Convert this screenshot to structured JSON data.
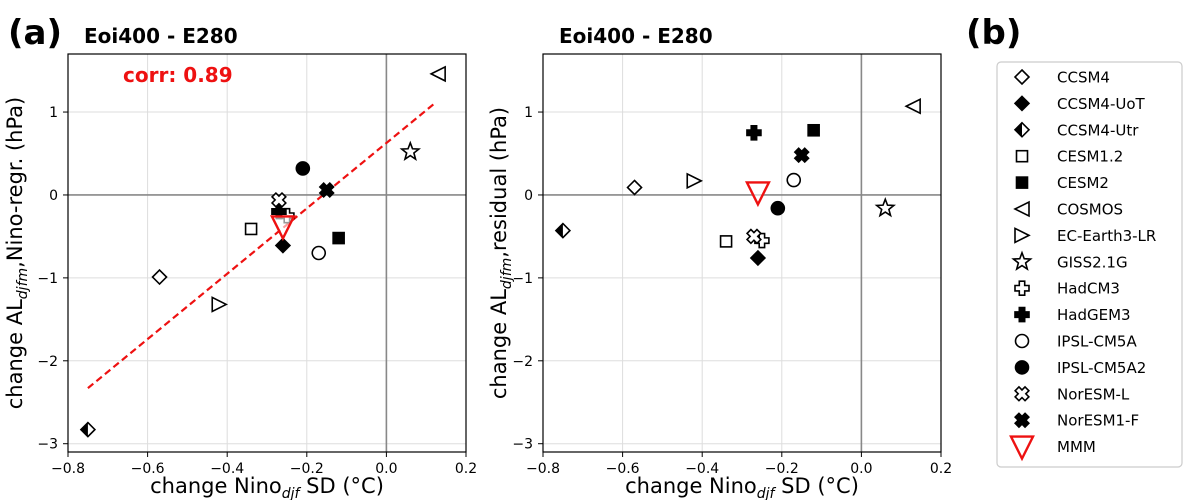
{
  "figure": {
    "panel_label_a": "(a)",
    "panel_label_b": "(b)"
  },
  "chart_data": [
    {
      "type": "scatter",
      "title": "Eoi400 - E280",
      "xlabel": "change Nino",
      "xlabel_sub": "djf",
      "xlabel_tail": " SD (°C)",
      "ylabel": "change AL",
      "ylabel_sub": "djfm",
      "ylabel_tail": ",Nino-regr. (hPa)",
      "xlim": [
        -0.8,
        0.2
      ],
      "ylim": [
        -3.1,
        1.7
      ],
      "xticks": [
        -0.8,
        -0.6,
        -0.4,
        -0.2,
        0.0,
        0.2
      ],
      "xtick_labels": [
        "−0.8",
        "−0.6",
        "−0.4",
        "−0.2",
        "0.0",
        "0.2"
      ],
      "yticks": [
        -3,
        -2,
        -1,
        0,
        1
      ],
      "ytick_labels": [
        "−3",
        "−2",
        "−1",
        "0",
        "1"
      ],
      "grid": true,
      "annotation": "corr: 0.89",
      "fit_line": {
        "x": [
          -0.75,
          0.12
        ],
        "y": [
          -2.33,
          1.1
        ],
        "color": "#ee1111"
      },
      "points": [
        {
          "model": "CCSM4",
          "x": -0.57,
          "y": -0.99
        },
        {
          "model": "CCSM4-UoT",
          "x": -0.26,
          "y": -0.61
        },
        {
          "model": "CCSM4-Utr",
          "x": -0.75,
          "y": -2.83
        },
        {
          "model": "CESM1.2",
          "x": -0.34,
          "y": -0.41
        },
        {
          "model": "CESM2",
          "x": -0.12,
          "y": -0.52
        },
        {
          "model": "COSMOS",
          "x": 0.13,
          "y": 1.46
        },
        {
          "model": "EC-Earth3-LR",
          "x": -0.42,
          "y": -1.32
        },
        {
          "model": "GISS2.1G",
          "x": 0.06,
          "y": 0.52
        },
        {
          "model": "HadCM3",
          "x": -0.25,
          "y": -0.25
        },
        {
          "model": "HadGEM3",
          "x": -0.27,
          "y": -0.2
        },
        {
          "model": "IPSL-CM5A",
          "x": -0.17,
          "y": -0.7
        },
        {
          "model": "IPSL-CM5A2",
          "x": -0.21,
          "y": 0.32
        },
        {
          "model": "NorESM-L",
          "x": -0.27,
          "y": -0.06
        },
        {
          "model": "NorESM1-F",
          "x": -0.15,
          "y": 0.06
        },
        {
          "model": "MMM",
          "x": -0.26,
          "y": -0.38
        }
      ]
    },
    {
      "type": "scatter",
      "title": "Eoi400 - E280",
      "xlabel": "change Nino",
      "xlabel_sub": "djf",
      "xlabel_tail": " SD (°C)",
      "ylabel": "change AL",
      "ylabel_sub": "djfm",
      "ylabel_tail": ",residual (hPa)",
      "xlim": [
        -0.8,
        0.2
      ],
      "ylim": [
        -3.1,
        1.7
      ],
      "xticks": [
        -0.8,
        -0.6,
        -0.4,
        -0.2,
        0.0,
        0.2
      ],
      "xtick_labels": [
        "−0.8",
        "−0.6",
        "−0.4",
        "−0.2",
        "0.0",
        "0.2"
      ],
      "yticks": [
        -3,
        -2,
        -1,
        0,
        1
      ],
      "ytick_labels": [
        "−3",
        "−2",
        "−1",
        "0",
        "1"
      ],
      "grid": true,
      "points": [
        {
          "model": "CCSM4",
          "x": -0.57,
          "y": 0.09
        },
        {
          "model": "CCSM4-UoT",
          "x": -0.26,
          "y": -0.76
        },
        {
          "model": "CCSM4-Utr",
          "x": -0.75,
          "y": -0.43
        },
        {
          "model": "CESM1.2",
          "x": -0.34,
          "y": -0.56
        },
        {
          "model": "CESM2",
          "x": -0.12,
          "y": 0.78
        },
        {
          "model": "COSMOS",
          "x": 0.13,
          "y": 1.07
        },
        {
          "model": "EC-Earth3-LR",
          "x": -0.42,
          "y": 0.17
        },
        {
          "model": "GISS2.1G",
          "x": 0.06,
          "y": -0.16
        },
        {
          "model": "HadCM3",
          "x": -0.25,
          "y": -0.55
        },
        {
          "model": "HadGEM3",
          "x": -0.27,
          "y": 0.75
        },
        {
          "model": "IPSL-CM5A",
          "x": -0.17,
          "y": 0.18
        },
        {
          "model": "IPSL-CM5A2",
          "x": -0.21,
          "y": -0.16
        },
        {
          "model": "NorESM-L",
          "x": -0.27,
          "y": -0.5
        },
        {
          "model": "NorESM1-F",
          "x": -0.15,
          "y": 0.48
        },
        {
          "model": "MMM",
          "x": -0.26,
          "y": 0.03
        }
      ]
    }
  ],
  "legend": {
    "placement": "right",
    "entries": [
      {
        "label": "CCSM4",
        "marker": "diamond-open-icon"
      },
      {
        "label": "CCSM4-UoT",
        "marker": "diamond-filled-icon"
      },
      {
        "label": "CCSM4-Utr",
        "marker": "diamond-half-icon"
      },
      {
        "label": "CESM1.2",
        "marker": "square-open-icon"
      },
      {
        "label": "CESM2",
        "marker": "square-filled-icon"
      },
      {
        "label": "COSMOS",
        "marker": "triangle-left-open-icon"
      },
      {
        "label": "EC-Earth3-LR",
        "marker": "triangle-right-open-icon"
      },
      {
        "label": "GISS2.1G",
        "marker": "star-open-icon"
      },
      {
        "label": "HadCM3",
        "marker": "plus-open-icon"
      },
      {
        "label": "HadGEM3",
        "marker": "plus-filled-icon"
      },
      {
        "label": "IPSL-CM5A",
        "marker": "circle-open-icon"
      },
      {
        "label": "IPSL-CM5A2",
        "marker": "circle-filled-icon"
      },
      {
        "label": "NorESM-L",
        "marker": "x-open-icon"
      },
      {
        "label": "NorESM1-F",
        "marker": "x-filled-icon"
      },
      {
        "label": "MMM",
        "marker": "triangle-down-red-icon",
        "color": "#ee1111"
      }
    ]
  },
  "colors": {
    "marker": "#000000",
    "mmm": "#ee1111",
    "grid": "#dddddd",
    "zero_line": "#888888"
  }
}
